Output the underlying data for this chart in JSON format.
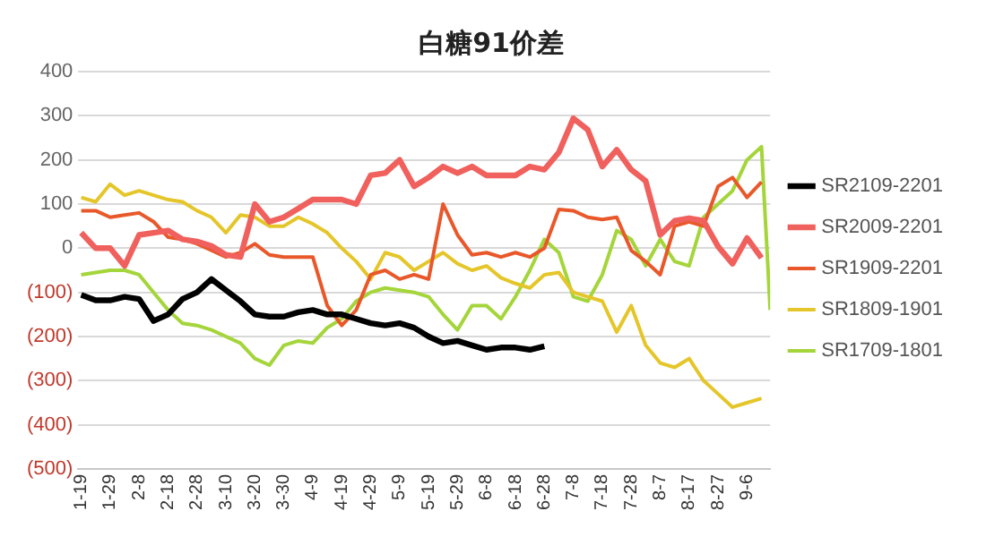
{
  "chart_data": {
    "type": "line",
    "title": "白糖91价差",
    "x": [
      "--01-19",
      "--01-24",
      "--01-29",
      "--02-03",
      "--02-08",
      "--02-13",
      "--02-18",
      "--02-23",
      "--02-28",
      "--03-05",
      "--03-10",
      "--03-15",
      "--03-20",
      "--03-25",
      "--03-30",
      "--04-04",
      "--04-09",
      "--04-14",
      "--04-19",
      "--04-24",
      "--04-29",
      "--05-04",
      "--05-09",
      "--05-14",
      "--05-19",
      "--05-24",
      "--05-29",
      "--06-03",
      "--06-08",
      "--06-13",
      "--06-18",
      "--06-23",
      "--06-28",
      "--07-03",
      "--07-08",
      "--07-13",
      "--07-18",
      "--07-23",
      "--07-28",
      "--08-02",
      "--08-07",
      "--08-12",
      "--08-17",
      "--08-22",
      "--08-27",
      "--09-01",
      "--09-06",
      "--09-11",
      "--09-14"
    ],
    "series": [
      {
        "name": "SR2109-2201",
        "color": "#000000",
        "values": [
          -106,
          -118,
          -118,
          -110,
          -115,
          -165,
          -150,
          -115,
          -100,
          -70,
          -95,
          -120,
          -150,
          -155,
          -155,
          -145,
          -140,
          -150,
          -150,
          -160,
          -170,
          -175,
          -170,
          -180,
          -200,
          -215,
          -210,
          -220,
          -230,
          -225,
          -225,
          -230,
          -222,
          null,
          null,
          null,
          null,
          null,
          null,
          null,
          null,
          null,
          null,
          null,
          null,
          null,
          null,
          null,
          null
        ]
      },
      {
        "name": "SR2009-2201",
        "color": "#f0605d",
        "values": [
          35,
          0,
          0,
          -40,
          30,
          35,
          40,
          20,
          15,
          5,
          -15,
          -20,
          100,
          60,
          70,
          90,
          110,
          110,
          110,
          100,
          165,
          170,
          200,
          140,
          160,
          185,
          170,
          185,
          165,
          165,
          165,
          185,
          178,
          217,
          294,
          268,
          185,
          223,
          178,
          152,
          30,
          62,
          68,
          62,
          4,
          -35,
          23,
          -22,
          null
        ]
      },
      {
        "name": "SR1909-2201",
        "color": "#e8582a",
        "values": [
          85,
          85,
          70,
          75,
          80,
          60,
          25,
          20,
          10,
          -5,
          -20,
          -10,
          10,
          -15,
          -20,
          -20,
          -20,
          -130,
          -175,
          -140,
          -60,
          -50,
          -70,
          -60,
          -70,
          100,
          30,
          -15,
          -10,
          -20,
          -10,
          -20,
          0,
          88,
          85,
          70,
          65,
          70,
          -5,
          -30,
          -60,
          50,
          60,
          50,
          140,
          160,
          115,
          150,
          null
        ]
      },
      {
        "name": "SR1809-1901",
        "color": "#e5c62a",
        "values": [
          115,
          105,
          145,
          120,
          130,
          120,
          110,
          105,
          85,
          70,
          35,
          75,
          70,
          50,
          50,
          70,
          55,
          35,
          0,
          -30,
          -70,
          -10,
          -20,
          -50,
          -30,
          -10,
          -35,
          -50,
          -40,
          -67,
          -80,
          -90,
          -60,
          -55,
          -100,
          -110,
          -120,
          -190,
          -130,
          -220,
          -260,
          -270,
          -250,
          -300,
          -330,
          -360,
          -350,
          -340,
          null
        ]
      },
      {
        "name": "SR1709-1801",
        "color": "#a4d53a",
        "values": [
          -60,
          -55,
          -50,
          -50,
          -60,
          -100,
          -140,
          -170,
          -175,
          -185,
          -200,
          -215,
          -250,
          -265,
          -220,
          -210,
          -215,
          -180,
          -160,
          -120,
          -100,
          -90,
          -95,
          -100,
          -110,
          -150,
          -185,
          -130,
          -130,
          -160,
          -110,
          -50,
          20,
          -10,
          -110,
          -120,
          -60,
          40,
          20,
          -40,
          20,
          -30,
          -40,
          70,
          100,
          130,
          200,
          230,
          -140
        ]
      }
    ],
    "xlim": [
      "--01-18",
      "--09-14"
    ],
    "xticks": [
      {
        "value": "--01-19",
        "label": "1-19"
      },
      {
        "value": "--01-29",
        "label": "1-29"
      },
      {
        "value": "--02-08",
        "label": "2-8"
      },
      {
        "value": "--02-18",
        "label": "2-18"
      },
      {
        "value": "--02-28",
        "label": "2-28"
      },
      {
        "value": "--03-10",
        "label": "3-10"
      },
      {
        "value": "--03-20",
        "label": "3-20"
      },
      {
        "value": "--03-30",
        "label": "3-30"
      },
      {
        "value": "--04-09",
        "label": "4-9"
      },
      {
        "value": "--04-19",
        "label": "4-19"
      },
      {
        "value": "--04-29",
        "label": "4-29"
      },
      {
        "value": "--05-09",
        "label": "5-9"
      },
      {
        "value": "--05-19",
        "label": "5-19"
      },
      {
        "value": "--05-29",
        "label": "5-29"
      },
      {
        "value": "--06-08",
        "label": "6-8"
      },
      {
        "value": "--06-18",
        "label": "6-18"
      },
      {
        "value": "--06-28",
        "label": "6-28"
      },
      {
        "value": "--07-08",
        "label": "7-8"
      },
      {
        "value": "--07-18",
        "label": "7-18"
      },
      {
        "value": "--07-28",
        "label": "7-28"
      },
      {
        "value": "--08-07",
        "label": "8-7"
      },
      {
        "value": "--08-17",
        "label": "8-17"
      },
      {
        "value": "--08-27",
        "label": "8-27"
      },
      {
        "value": "--09-06",
        "label": "9-6"
      }
    ],
    "ylim": [
      -500,
      400
    ],
    "yticks": [
      400,
      300,
      200,
      100,
      0,
      {
        "value": -100,
        "label": "(100)"
      },
      {
        "value": -200,
        "label": "(200)"
      },
      {
        "value": -300,
        "label": "(300)"
      },
      {
        "value": -400,
        "label": "(400)"
      },
      {
        "value": -500,
        "label": "(500)"
      }
    ],
    "grid": "y",
    "legend": "right",
    "marker": "none",
    "line_style": "solid"
  }
}
